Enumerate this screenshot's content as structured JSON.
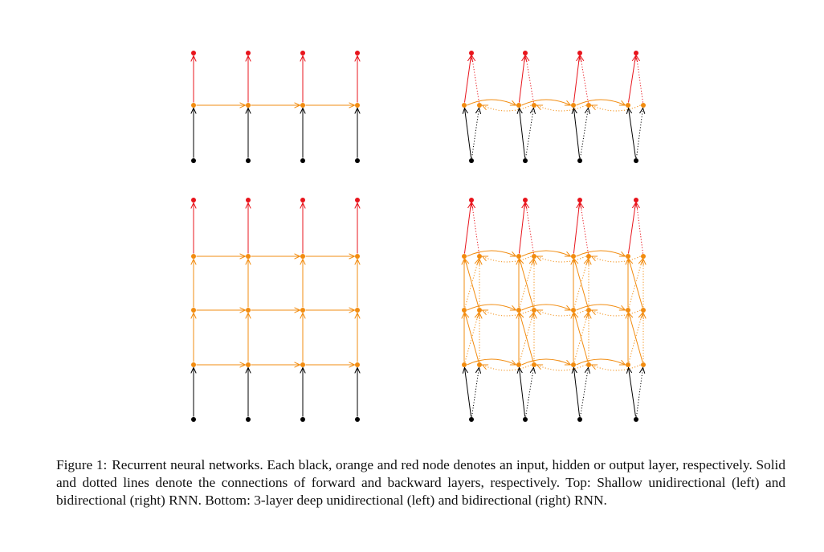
{
  "figure": {
    "label": "Figure 1:",
    "caption": "Recurrent neural networks. Each black, orange and red node denotes an input, hidden or output layer, respectively. Solid and dotted lines denote the connections of forward and backward layers, respectively. Top: Shallow unidirectional (left) and bidirectional (right) RNN. Bottom: 3-layer deep unidirectional (left) and bidirectional (right) RNN."
  },
  "colors": {
    "input": "#000000",
    "hidden": "#f28c10",
    "output": "#e8141c"
  },
  "panels": [
    {
      "id": "shallow-unidirectional",
      "layers": 1,
      "bidirectional": false,
      "timesteps": 4
    },
    {
      "id": "shallow-bidirectional",
      "layers": 1,
      "bidirectional": true,
      "timesteps": 4
    },
    {
      "id": "deep-unidirectional",
      "layers": 3,
      "bidirectional": false,
      "timesteps": 4
    },
    {
      "id": "deep-bidirectional",
      "layers": 3,
      "bidirectional": true,
      "timesteps": 4
    }
  ]
}
